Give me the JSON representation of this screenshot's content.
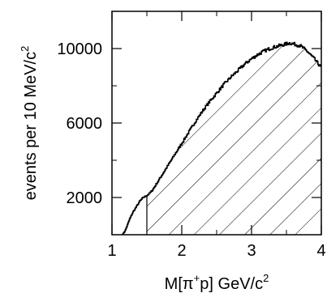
{
  "chart_data": {
    "type": "area",
    "style": "step-histogram",
    "xlim": [
      1,
      4
    ],
    "ylim": [
      0,
      12000
    ],
    "x_ticks": [
      1,
      2,
      3,
      4
    ],
    "x_minor_ticks": [
      1.5,
      2.5,
      3.5
    ],
    "y_ticks": [
      2000,
      6000,
      10000
    ],
    "y_minor_ticks": [
      4000,
      8000
    ],
    "x_tick_labels": [
      "1",
      "2",
      "3",
      "4"
    ],
    "y_tick_labels": [
      "2000",
      "6000",
      "10000"
    ],
    "xlabel": {
      "main": "M[π",
      "sup1": "+",
      "rest": "p]  GeV/c",
      "sup2": "2"
    },
    "ylabel": {
      "main": "events per 10 MeV/c",
      "sup": "2"
    },
    "hatched_region_x_min": 1.5,
    "grid": false,
    "colors": {
      "line": "#000000",
      "hatch": "#000000",
      "background": "#ffffff"
    },
    "x": [
      1.15,
      1.18,
      1.2,
      1.22,
      1.25,
      1.3,
      1.35,
      1.4,
      1.45,
      1.5,
      1.55,
      1.6,
      1.7,
      1.8,
      1.9,
      2.0,
      2.1,
      2.2,
      2.3,
      2.4,
      2.5,
      2.6,
      2.7,
      2.8,
      2.9,
      3.0,
      3.1,
      3.2,
      3.3,
      3.4,
      3.5,
      3.55,
      3.6,
      3.65,
      3.7,
      3.75,
      3.8,
      3.85,
      3.9,
      3.95,
      4.0
    ],
    "y": [
      0,
      150,
      300,
      500,
      800,
      1200,
      1500,
      1800,
      2000,
      2100,
      2250,
      2500,
      3100,
      3700,
      4300,
      4900,
      5500,
      6100,
      6650,
      7150,
      7600,
      8050,
      8450,
      8800,
      9150,
      9450,
      9700,
      9900,
      10050,
      10150,
      10250,
      10300,
      10250,
      10200,
      10150,
      10000,
      9850,
      9650,
      9450,
      9200,
      9000
    ]
  }
}
